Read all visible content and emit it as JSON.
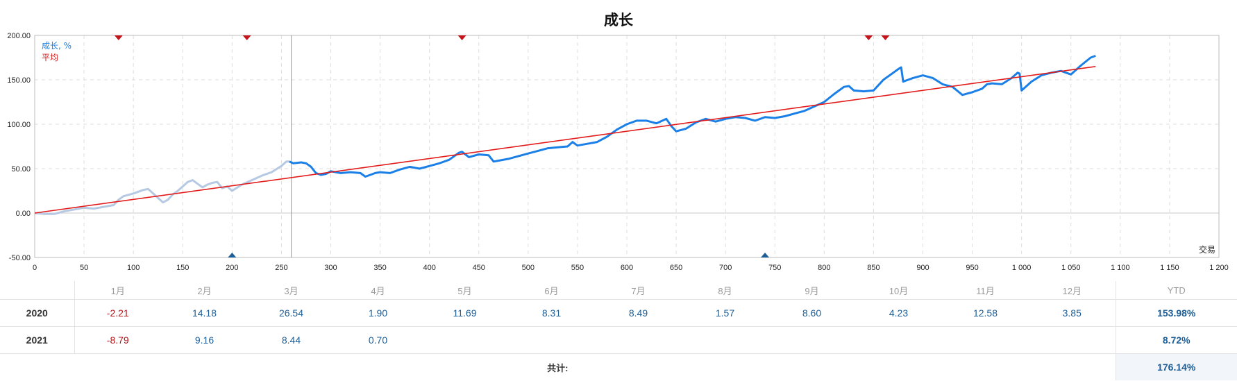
{
  "chart_data": {
    "type": "line",
    "title": "成长",
    "xlabel": "交易",
    "ylabel": "",
    "xlim": [
      0,
      1200
    ],
    "ylim": [
      -50,
      200
    ],
    "x_ticks": [
      "0",
      "50",
      "100",
      "150",
      "200",
      "250",
      "300",
      "350",
      "400",
      "450",
      "500",
      "550",
      "600",
      "650",
      "700",
      "750",
      "800",
      "850",
      "900",
      "950",
      "1 000",
      "1 050",
      "1 100",
      "1 150",
      "1 200"
    ],
    "y_ticks": [
      "-50.00",
      "0.00",
      "50.00",
      "100.00",
      "150.00",
      "200.00"
    ],
    "grid": true,
    "legend": {
      "position": "top-left",
      "growth_label": "成长, %",
      "average_label": "平均"
    },
    "colors": {
      "history": "#b6c9e2",
      "growth": "#1a7fe6",
      "average": "#e31b1b",
      "marker_top": "#c3161c",
      "marker_bottom": "#1d5e96"
    },
    "series": [
      {
        "name": "成长, %",
        "x": [
          0,
          10,
          20,
          30,
          40,
          50,
          60,
          70,
          80,
          85,
          90,
          100,
          110,
          115,
          120,
          125,
          130,
          135,
          140,
          145,
          150,
          155,
          160,
          165,
          170,
          175,
          180,
          185,
          190,
          195,
          200,
          210,
          220,
          230,
          240,
          250,
          255,
          258,
          262,
          270,
          275,
          280,
          285,
          290,
          295,
          300,
          310,
          320,
          330,
          335,
          340,
          345,
          350,
          360,
          370,
          380,
          390,
          400,
          410,
          420,
          430,
          433,
          440,
          450,
          460,
          465,
          470,
          480,
          490,
          500,
          510,
          520,
          530,
          540,
          545,
          550,
          560,
          570,
          580,
          590,
          600,
          610,
          620,
          630,
          640,
          645,
          650,
          660,
          670,
          680,
          690,
          700,
          710,
          720,
          730,
          740,
          750,
          760,
          770,
          780,
          790,
          800,
          810,
          820,
          825,
          830,
          840,
          850,
          860,
          870,
          875,
          878,
          880,
          890,
          900,
          910,
          920,
          930,
          940,
          950,
          960,
          965,
          970,
          980,
          990,
          996,
          998,
          1000,
          1010,
          1020,
          1030,
          1040,
          1050,
          1060,
          1070,
          1075
        ],
        "y": [
          0,
          -1,
          -1,
          2,
          4,
          6,
          5,
          7,
          9,
          15,
          19,
          22,
          26,
          27,
          22,
          17,
          12,
          15,
          21,
          25,
          30,
          35,
          37,
          33,
          29,
          32,
          34,
          35,
          28,
          30,
          25,
          32,
          37,
          42,
          46,
          53,
          58,
          58,
          56,
          57,
          56,
          52,
          45,
          43,
          44,
          47,
          45,
          46,
          45,
          41,
          43,
          45,
          46,
          45,
          49,
          52,
          50,
          53,
          56,
          60,
          68,
          69,
          63,
          66,
          65,
          58,
          59,
          61,
          64,
          67,
          70,
          73,
          74,
          75,
          80,
          76,
          78,
          80,
          86,
          94,
          100,
          104,
          104,
          101,
          106,
          98,
          92,
          95,
          102,
          106,
          103,
          106,
          108,
          107,
          104,
          108,
          107,
          109,
          112,
          115,
          120,
          125,
          134,
          142,
          143,
          138,
          137,
          138,
          150,
          158,
          162,
          164,
          148,
          152,
          155,
          152,
          145,
          142,
          133,
          136,
          140,
          145,
          146,
          145,
          152,
          158,
          157,
          138,
          148,
          155,
          158,
          160,
          156,
          166,
          175,
          177
        ]
      },
      {
        "name": "平均",
        "x": [
          0,
          1075
        ],
        "y": [
          0,
          165
        ]
      }
    ],
    "history_until_x": 258,
    "cursor_x": 260,
    "top_markers_x": [
      85,
      215,
      433,
      845,
      862
    ],
    "bottom_markers_x": [
      200,
      740
    ]
  },
  "table": {
    "headers": [
      "1月",
      "2月",
      "3月",
      "4月",
      "5月",
      "6月",
      "7月",
      "8月",
      "9月",
      "10月",
      "11月",
      "12月",
      "YTD"
    ],
    "rows": [
      {
        "year": "2020",
        "values": [
          "-2.21",
          "14.18",
          "26.54",
          "1.90",
          "11.69",
          "8.31",
          "8.49",
          "1.57",
          "8.60",
          "4.23",
          "12.58",
          "3.85"
        ],
        "ytd": "153.98%"
      },
      {
        "year": "2021",
        "values": [
          "-8.79",
          "9.16",
          "8.44",
          "0.70",
          "",
          "",
          "",
          "",
          "",
          "",
          "",
          ""
        ],
        "ytd": "8.72%"
      }
    ],
    "total_label": "共计:",
    "total_value": "176.14%"
  }
}
